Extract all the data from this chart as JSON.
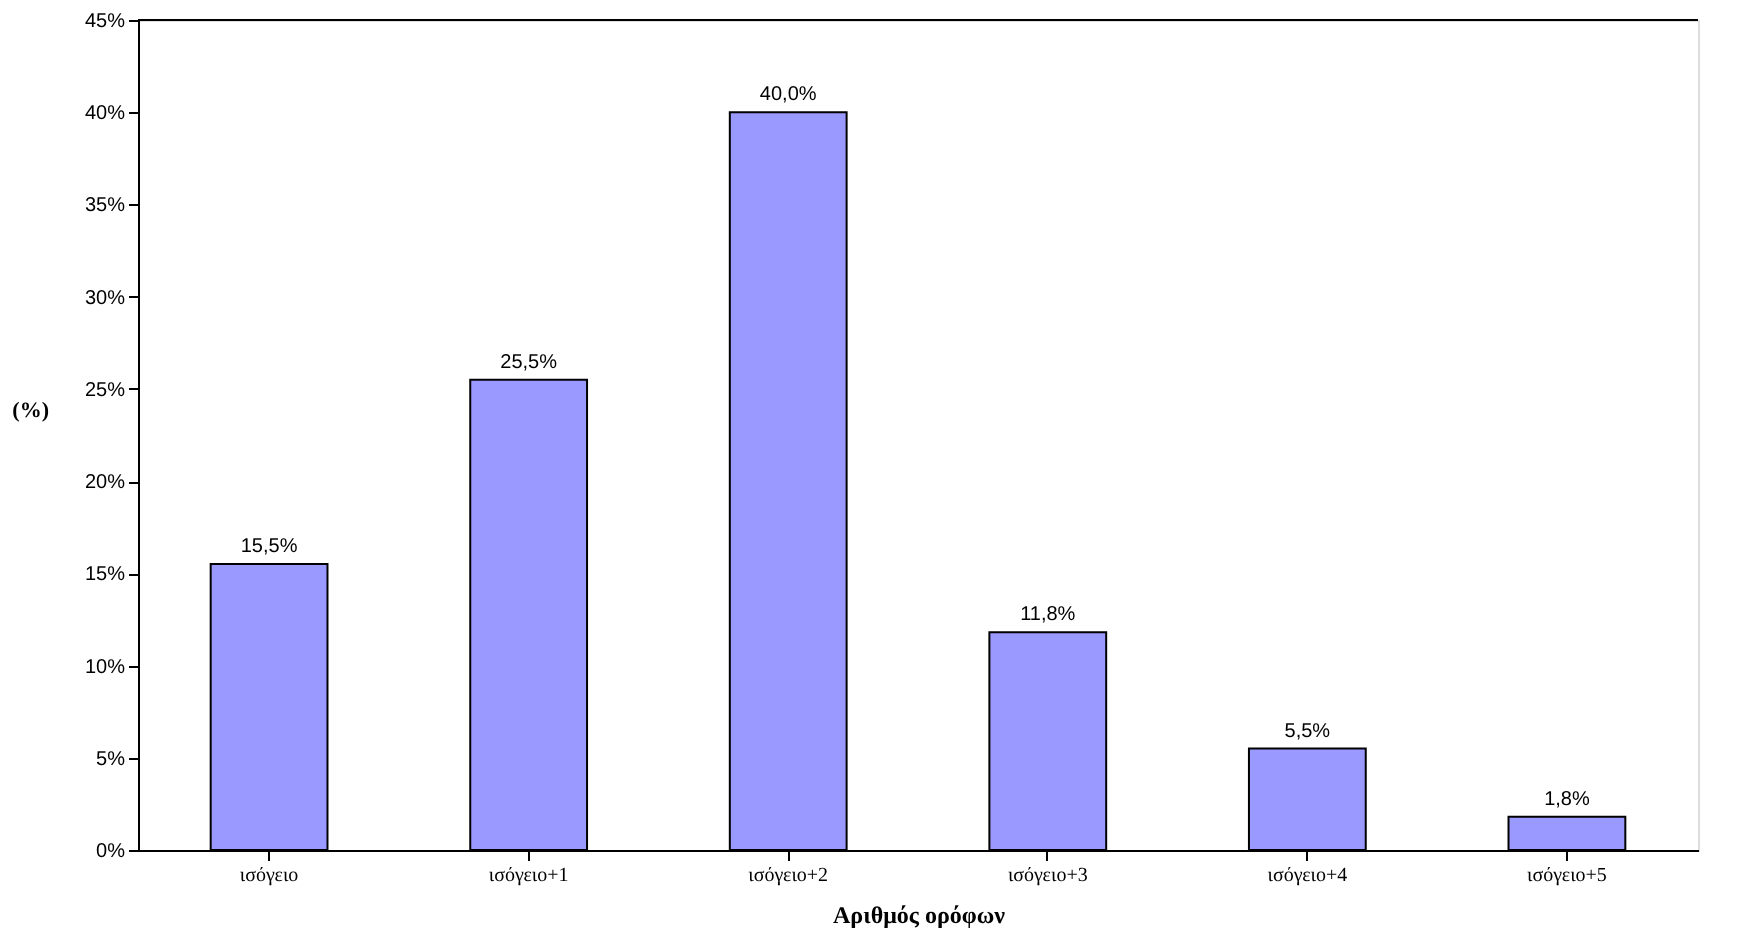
{
  "chart_data": {
    "type": "bar",
    "xlabel": "Αριθμός ορόφων",
    "ylabel": "(%)",
    "categories": [
      "ισόγειο",
      "ισόγειο+1",
      "ισόγειο+2",
      "ισόγειο+3",
      "ισόγειο+4",
      "ισόγειο+5"
    ],
    "values": [
      15.5,
      25.5,
      40.0,
      11.8,
      5.5,
      1.8
    ],
    "value_labels": [
      "15,5%",
      "25,5%",
      "40,0%",
      "11,8%",
      "5,5%",
      "1,8%"
    ],
    "color": "#9999ff",
    "ylim": [
      0,
      45
    ],
    "yticks": [
      {
        "value": 0,
        "label": "0%"
      },
      {
        "value": 5,
        "label": "5%"
      },
      {
        "value": 10,
        "label": "10%"
      },
      {
        "value": 15,
        "label": "15%"
      },
      {
        "value": 20,
        "label": "20%"
      },
      {
        "value": 25,
        "label": "25%"
      },
      {
        "value": 30,
        "label": "30%"
      },
      {
        "value": 35,
        "label": "35%"
      },
      {
        "value": 40,
        "label": "40%"
      },
      {
        "value": 45,
        "label": "45%"
      }
    ],
    "grid": false
  }
}
